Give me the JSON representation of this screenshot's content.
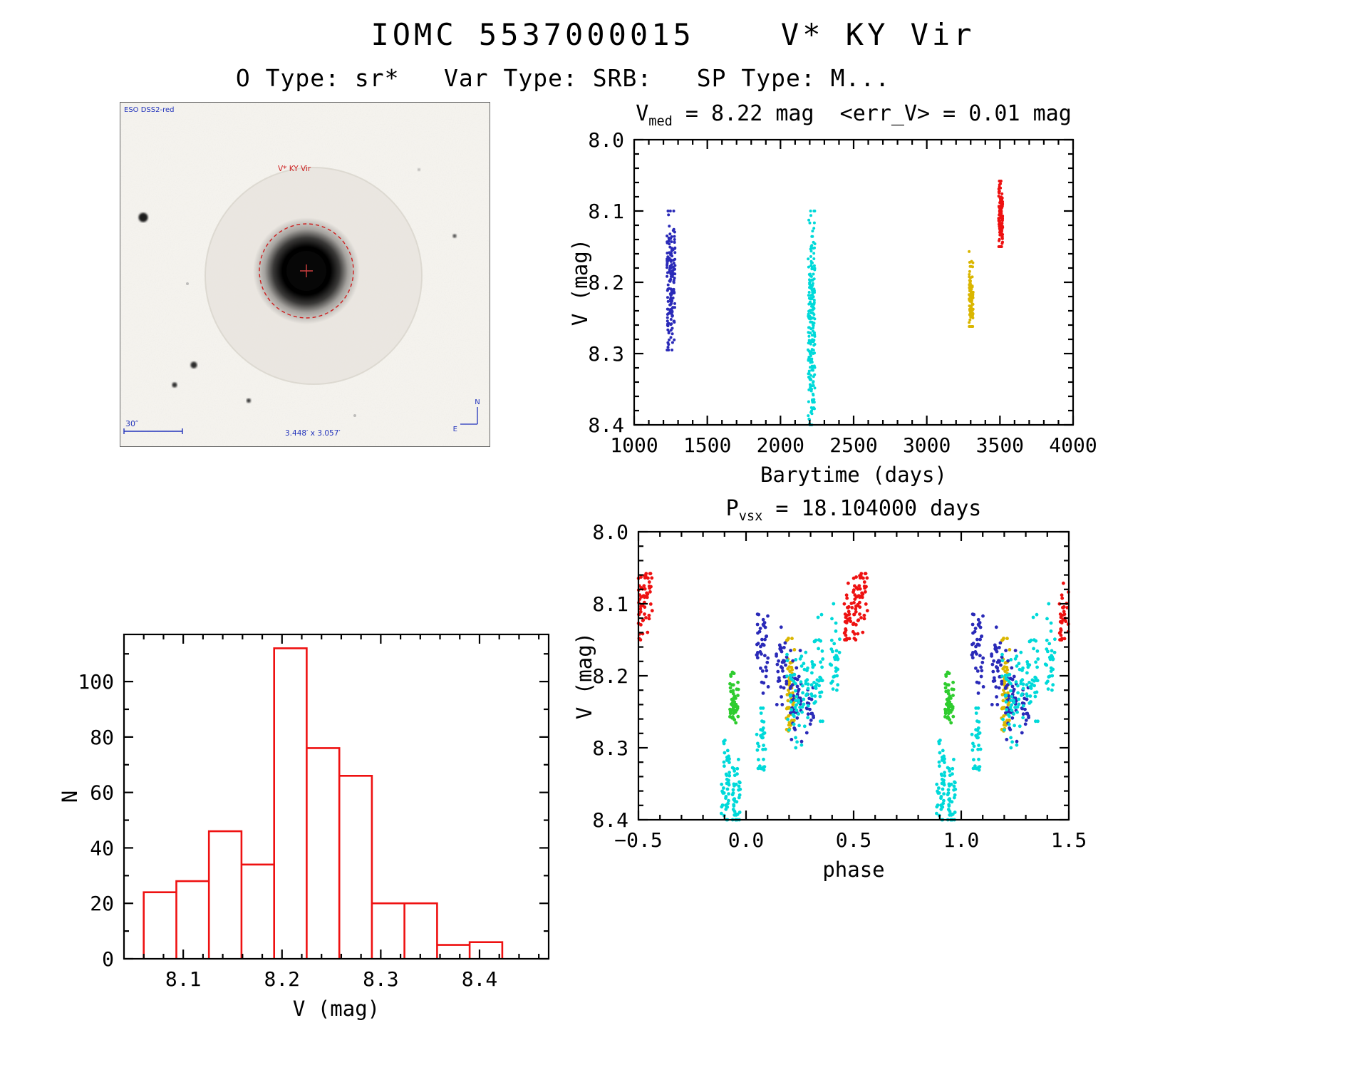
{
  "page": {
    "title": "IOMC 5537000015    V* KY Vir",
    "subtitle": "O Type: sr*   Var Type: SRB:   SP Type: M..."
  },
  "sky_image": {
    "survey_label": "ESO DSS2-red",
    "target_label": "V* KY Vir",
    "scale_label": "30″",
    "fov_label": "3.448′ x 3.057′",
    "compass_north": "N",
    "compass_east": "E"
  },
  "colors": {
    "series_blue": "#2a2ab8",
    "series_cyan": "#00d9d9",
    "series_yellow": "#dab600",
    "series_red": "#ee1111",
    "series_green": "#2ecc2e",
    "histogram_red": "#ee1111"
  },
  "chart_data": [
    {
      "id": "lightcurve",
      "type": "scatter",
      "title": {
        "main": "V",
        "sub": "med",
        "rest": " = 8.22 mag  <err_V> = 0.01 mag"
      },
      "xlabel": "Barytime (days)",
      "ylabel": "V (mag)",
      "xlim": [
        1000,
        4000
      ],
      "ylim": [
        8.0,
        8.4
      ],
      "y_inverted": true,
      "xticks": {
        "values": [
          1000,
          1500,
          2000,
          2500,
          3000,
          3500,
          4000
        ],
        "labels": [
          "1000",
          "1500",
          "2000",
          "2500",
          "3000",
          "3500",
          "4000"
        ],
        "minor": 4
      },
      "yticks": {
        "values": [
          8.0,
          8.1,
          8.2,
          8.3,
          8.4
        ],
        "labels": [
          "8.0",
          "8.1",
          "8.2",
          "8.3",
          "8.4"
        ],
        "minor": 4
      },
      "point_radius": 2,
      "clusters": [
        {
          "color": "#2a2ab8",
          "x_center": 1252,
          "x_spread": 28,
          "y_center": 8.205,
          "y_sigma": 0.05,
          "y_min": 8.1,
          "y_max": 8.295,
          "n": 170
        },
        {
          "color": "#00d9d9",
          "x_center": 2212,
          "x_spread": 24,
          "y_center": 8.255,
          "y_sigma": 0.08,
          "y_min": 8.1,
          "y_max": 8.4,
          "n": 220
        },
        {
          "color": "#dab600",
          "x_center": 3303,
          "x_spread": 14,
          "y_center": 8.222,
          "y_sigma": 0.028,
          "y_min": 8.15,
          "y_max": 8.262,
          "n": 90
        },
        {
          "color": "#ee1111",
          "x_center": 3505,
          "x_spread": 14,
          "y_center": 8.104,
          "y_sigma": 0.026,
          "y_min": 8.058,
          "y_max": 8.15,
          "n": 140
        }
      ]
    },
    {
      "id": "histogram",
      "type": "histogram",
      "xlabel": "V (mag)",
      "ylabel": "N",
      "xlim": [
        8.04,
        8.47
      ],
      "ylim": [
        0,
        117
      ],
      "xticks": {
        "values": [
          8.1,
          8.2,
          8.3,
          8.4
        ],
        "labels": [
          "8.1",
          "8.2",
          "8.3",
          "8.4"
        ],
        "minor": 4
      },
      "yticks": {
        "values": [
          0,
          20,
          40,
          60,
          80,
          100
        ],
        "labels": [
          "0",
          "20",
          "40",
          "60",
          "80",
          "100"
        ],
        "minor": 1
      },
      "bar_color": "#ee1111",
      "bin_edges": [
        8.06,
        8.093,
        8.126,
        8.159,
        8.192,
        8.225,
        8.258,
        8.291,
        8.324,
        8.357,
        8.39,
        8.423
      ],
      "counts": [
        24,
        28,
        46,
        34,
        112,
        76,
        66,
        20,
        20,
        5,
        6
      ]
    },
    {
      "id": "phase",
      "type": "scatter",
      "title": {
        "main": "P",
        "sub": "vsx",
        "rest": " = 18.104000 days"
      },
      "xlabel": "phase",
      "ylabel": "V (mag)",
      "xlim": [
        -0.5,
        1.5
      ],
      "ylim": [
        8.0,
        8.4
      ],
      "y_inverted": true,
      "xticks": {
        "values": [
          -0.5,
          0.0,
          0.5,
          1.0,
          1.5
        ],
        "labels": [
          "−0.5",
          "0.0",
          "0.5",
          "1.0",
          "1.5"
        ],
        "minor": 4
      },
      "yticks": {
        "values": [
          8.0,
          8.1,
          8.2,
          8.3,
          8.4
        ],
        "labels": [
          "8.0",
          "8.1",
          "8.2",
          "8.3",
          "8.4"
        ],
        "minor": 4
      },
      "point_radius": 2.4,
      "replicate_offsets": [
        -1,
        0,
        1
      ],
      "clusters": [
        {
          "color": "#ee1111",
          "x_center": 0.51,
          "x_spread": 0.055,
          "y_center": 8.103,
          "y_sigma": 0.024,
          "y_min": 8.058,
          "y_max": 8.15,
          "n": 90,
          "slope": -0.45
        },
        {
          "color": "#2ecc2e",
          "x_center": 0.945,
          "x_spread": 0.02,
          "y_center": 8.232,
          "y_sigma": 0.02,
          "y_min": 8.195,
          "y_max": 8.272,
          "n": 50
        },
        {
          "color": "#dab600",
          "x_center": 0.205,
          "x_spread": 0.02,
          "y_center": 8.215,
          "y_sigma": 0.035,
          "y_min": 8.148,
          "y_max": 8.285,
          "n": 55
        },
        {
          "color": "#2a2ab8",
          "x_center": 0.075,
          "x_spread": 0.028,
          "y_center": 8.165,
          "y_sigma": 0.04,
          "y_min": 8.095,
          "y_max": 8.25,
          "n": 40
        },
        {
          "color": "#2a2ab8",
          "x_center": 0.165,
          "x_spread": 0.025,
          "y_center": 8.185,
          "y_sigma": 0.03,
          "y_min": 8.125,
          "y_max": 8.24,
          "n": 35
        },
        {
          "color": "#2a2ab8",
          "x_center": 0.235,
          "x_spread": 0.03,
          "y_center": 8.23,
          "y_sigma": 0.035,
          "y_min": 8.165,
          "y_max": 8.3,
          "n": 40
        },
        {
          "color": "#2a2ab8",
          "x_center": 0.3,
          "x_spread": 0.018,
          "y_center": 8.25,
          "y_sigma": 0.025,
          "y_min": 8.2,
          "y_max": 8.295,
          "n": 18
        },
        {
          "color": "#00d9d9",
          "x_center": 0.905,
          "x_spread": 0.02,
          "y_center": 8.345,
          "y_sigma": 0.035,
          "y_min": 8.28,
          "y_max": 8.4,
          "n": 45
        },
        {
          "color": "#00d9d9",
          "x_center": 0.955,
          "x_spread": 0.018,
          "y_center": 8.37,
          "y_sigma": 0.03,
          "y_min": 8.315,
          "y_max": 8.4,
          "n": 40
        },
        {
          "color": "#00d9d9",
          "x_center": 0.07,
          "x_spread": 0.02,
          "y_center": 8.295,
          "y_sigma": 0.03,
          "y_min": 8.245,
          "y_max": 8.345,
          "n": 30
        },
        {
          "color": "#00d9d9",
          "x_center": 0.24,
          "x_spread": 0.05,
          "y_center": 8.23,
          "y_sigma": 0.04,
          "y_min": 8.155,
          "y_max": 8.3,
          "n": 60
        },
        {
          "color": "#00d9d9",
          "x_center": 0.33,
          "x_spread": 0.028,
          "y_center": 8.195,
          "y_sigma": 0.04,
          "y_min": 8.115,
          "y_max": 8.27,
          "n": 40
        },
        {
          "color": "#00d9d9",
          "x_center": 0.41,
          "x_spread": 0.025,
          "y_center": 8.16,
          "y_sigma": 0.035,
          "y_min": 8.1,
          "y_max": 8.22,
          "n": 30
        }
      ]
    }
  ]
}
